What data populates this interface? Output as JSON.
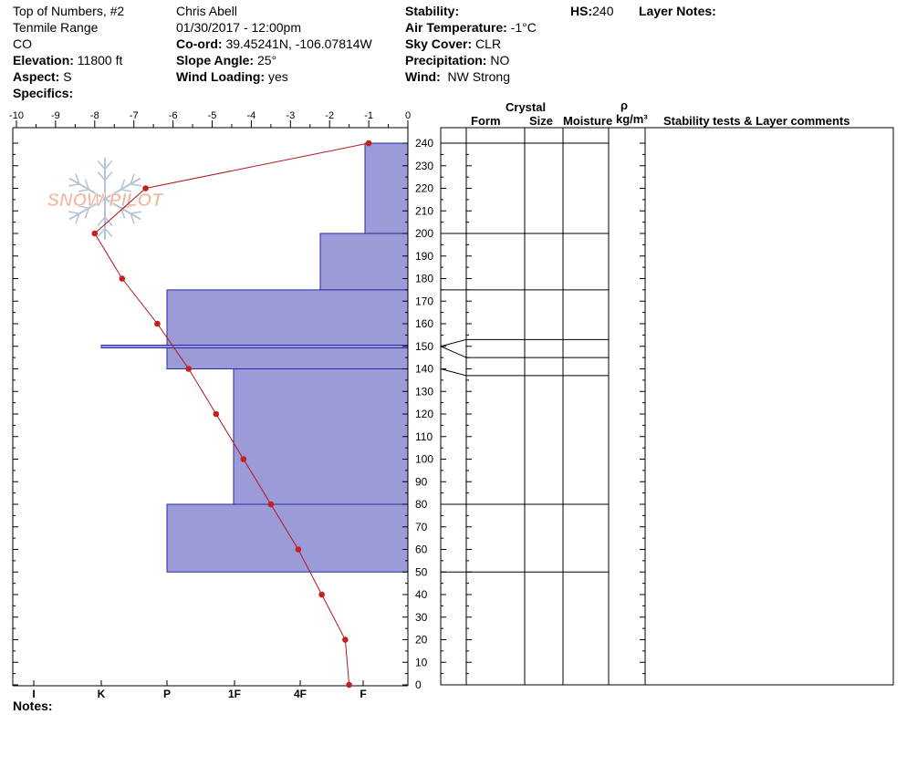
{
  "header": {
    "location": "Top of Numbers, #2",
    "range": "Tenmile Range",
    "state": "CO",
    "elevation_label": "Elevation:",
    "elevation_value": "11800 ft",
    "aspect_label": "Aspect:",
    "aspect_value": "S",
    "specifics_label": "Specifics:",
    "observer": "Chris Abell",
    "datetime": "01/30/2017 - 12:00pm",
    "coord_label": "Co-ord:",
    "coord_value": "39.45241N, -106.07814W",
    "slope_label": "Slope Angle:",
    "slope_value": "25°",
    "wind_loading_label": "Wind Loading:",
    "wind_loading_value": "yes",
    "stability_label": "Stability:",
    "air_temp_label": "Air Temperature:",
    "air_temp_value": "-1°C",
    "sky_label": "Sky Cover:",
    "sky_value": "CLR",
    "precip_label": "Precipitation:",
    "precip_value": "NO",
    "wind_label": "Wind:",
    "wind_value": "NW Strong",
    "hs_label": "HS:",
    "hs_value": "240",
    "layer_notes_label": "Layer Notes:"
  },
  "columns": {
    "crystal": "Crystal",
    "form": "Form",
    "size": "Size",
    "moisture": "Moisture",
    "rho": "ρ",
    "density_unit": "kg/m³",
    "stability": "Stability tests & Layer comments"
  },
  "notes_label": "Notes:",
  "logo_text": "SNOW PILOT",
  "colors": {
    "hardness_fill": "#9b9bd8",
    "hardness_stroke": "#2a2aa8",
    "temp_line": "#b01818",
    "temp_point": "#c42020",
    "logo_text": "#f0b8a0",
    "logo_flake": "#b8c4d4"
  },
  "chart_data": {
    "type": "snow-profile",
    "temperature_axis": {
      "label_ticks": [
        "-10",
        "-9",
        "-8",
        "-7",
        "-6",
        "-5",
        "-4",
        "-3",
        "-2",
        "-1",
        "0"
      ],
      "min": -10,
      "max": 0
    },
    "hardness_axis": {
      "ticks": [
        "I",
        "K",
        "P",
        "1F",
        "4F",
        "F"
      ],
      "order": "right-to-left"
    },
    "height_axis": {
      "min": 0,
      "max": 240,
      "step": 10,
      "ticks": [
        "240",
        "230",
        "220",
        "210",
        "200",
        "190",
        "180",
        "170",
        "160",
        "150",
        "140",
        "130",
        "120",
        "110",
        "100",
        "90",
        "80",
        "70",
        "60",
        "50",
        "40",
        "30",
        "20",
        "10",
        "0"
      ]
    },
    "layers": [
      {
        "top": 240,
        "bottom": 200,
        "hardness": "F"
      },
      {
        "top": 200,
        "bottom": 175,
        "hardness": "4F"
      },
      {
        "top": 175,
        "bottom": 140,
        "hardness": "P"
      },
      {
        "top": 150.5,
        "bottom": 149.5,
        "hardness": "K"
      },
      {
        "top": 140,
        "bottom": 80,
        "hardness": "1F"
      },
      {
        "top": 80,
        "bottom": 50,
        "hardness": "P"
      }
    ],
    "temperature_profile": [
      {
        "height": 240,
        "temp": -1.0
      },
      {
        "height": 220,
        "temp": -6.7
      },
      {
        "height": 200,
        "temp": -8.0
      },
      {
        "height": 180,
        "temp": -7.3
      },
      {
        "height": 160,
        "temp": -6.4
      },
      {
        "height": 140,
        "temp": -5.6
      },
      {
        "height": 120,
        "temp": -4.9
      },
      {
        "height": 100,
        "temp": -4.2
      },
      {
        "height": 80,
        "temp": -3.5
      },
      {
        "height": 60,
        "temp": -2.8
      },
      {
        "height": 40,
        "temp": -2.2
      },
      {
        "height": 20,
        "temp": -1.6
      },
      {
        "height": 0,
        "temp": -1.5
      }
    ],
    "layer_boundaries_right": [
      240,
      200,
      175,
      153,
      145,
      137,
      80,
      50
    ]
  }
}
